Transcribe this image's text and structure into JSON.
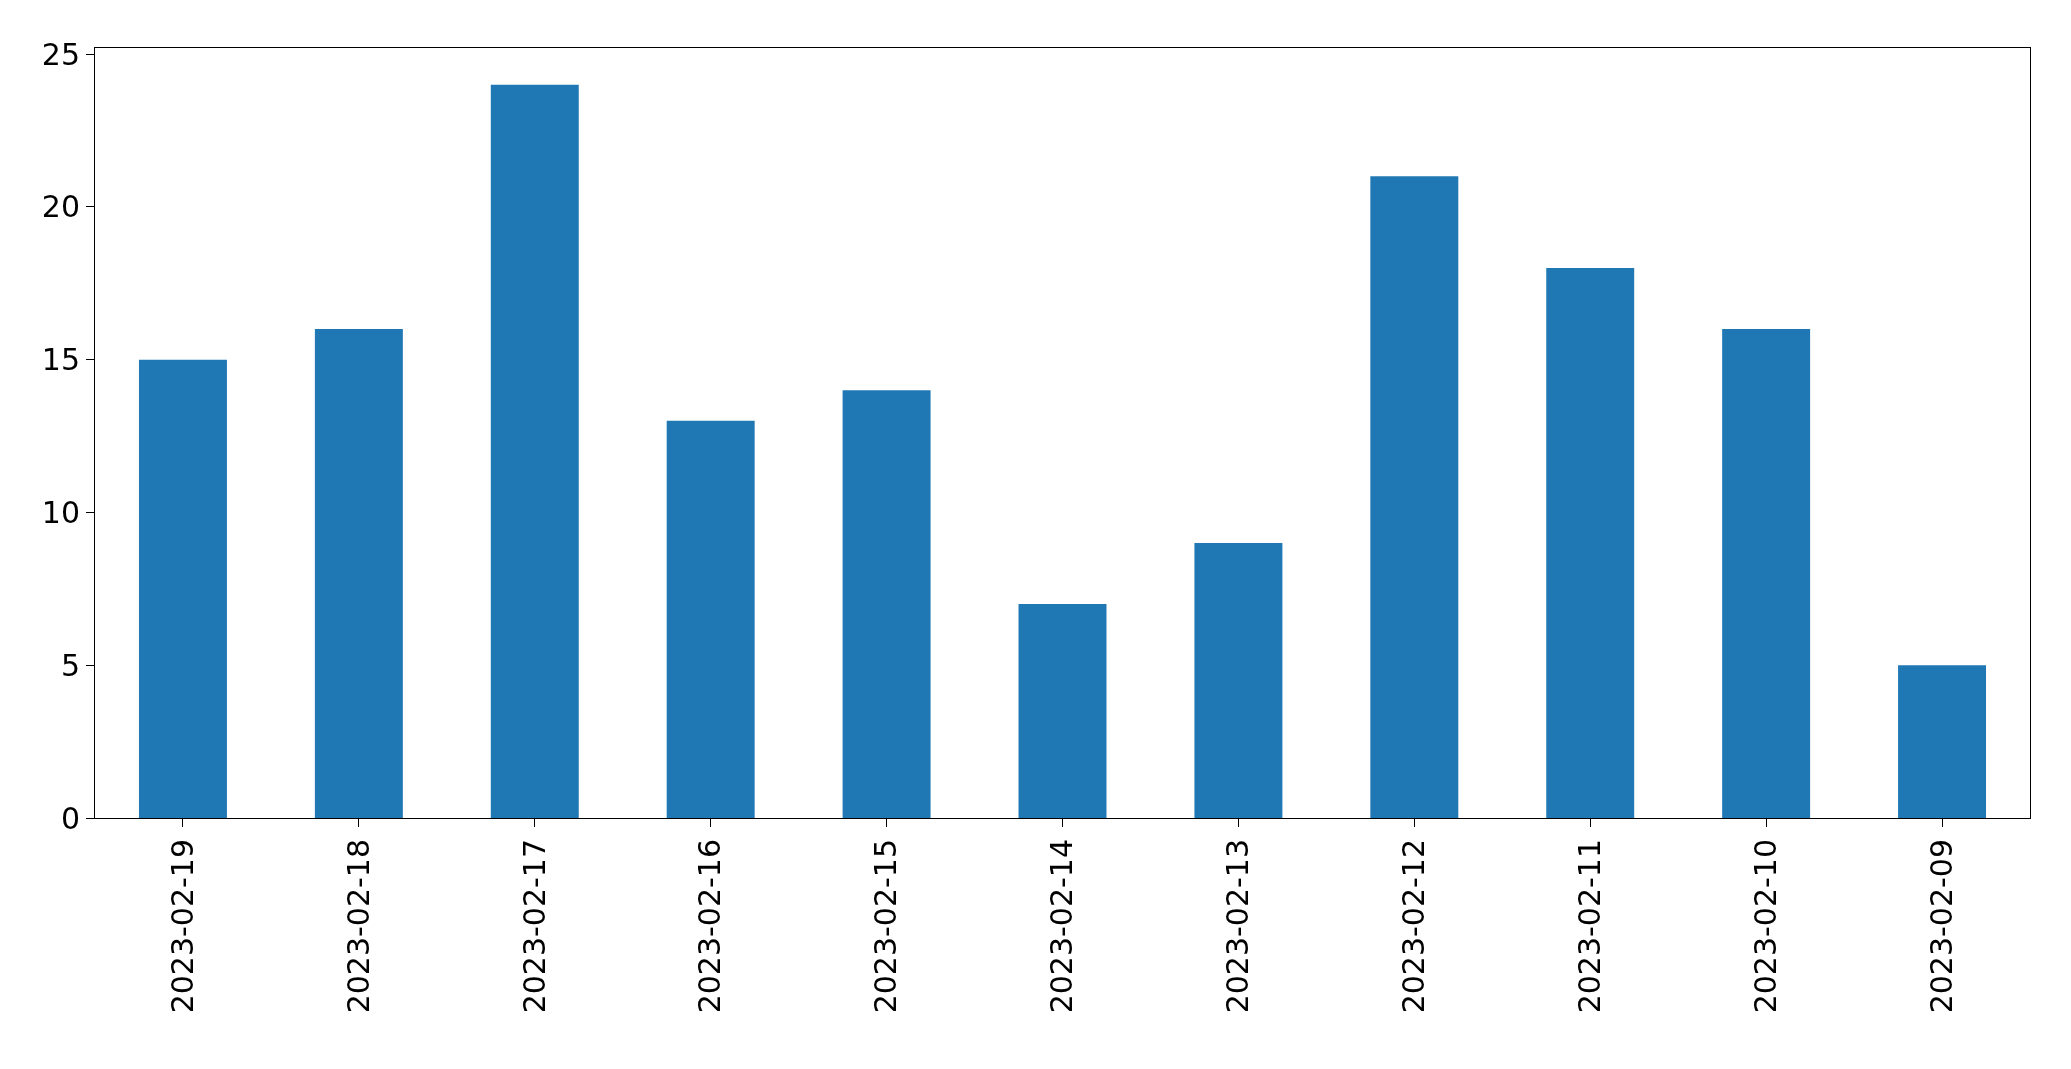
{
  "chart_data": {
    "type": "bar",
    "categories": [
      "2023-02-19",
      "2023-02-18",
      "2023-02-17",
      "2023-02-16",
      "2023-02-15",
      "2023-02-14",
      "2023-02-13",
      "2023-02-12",
      "2023-02-11",
      "2023-02-10",
      "2023-02-09"
    ],
    "values": [
      15,
      16,
      24,
      13,
      14,
      7,
      9,
      21,
      18,
      16,
      5
    ],
    "color": "#1f77b4",
    "ylim": [
      0,
      25.2
    ],
    "yticks": [
      0,
      5,
      10,
      15,
      20,
      25
    ],
    "legend": false
  }
}
